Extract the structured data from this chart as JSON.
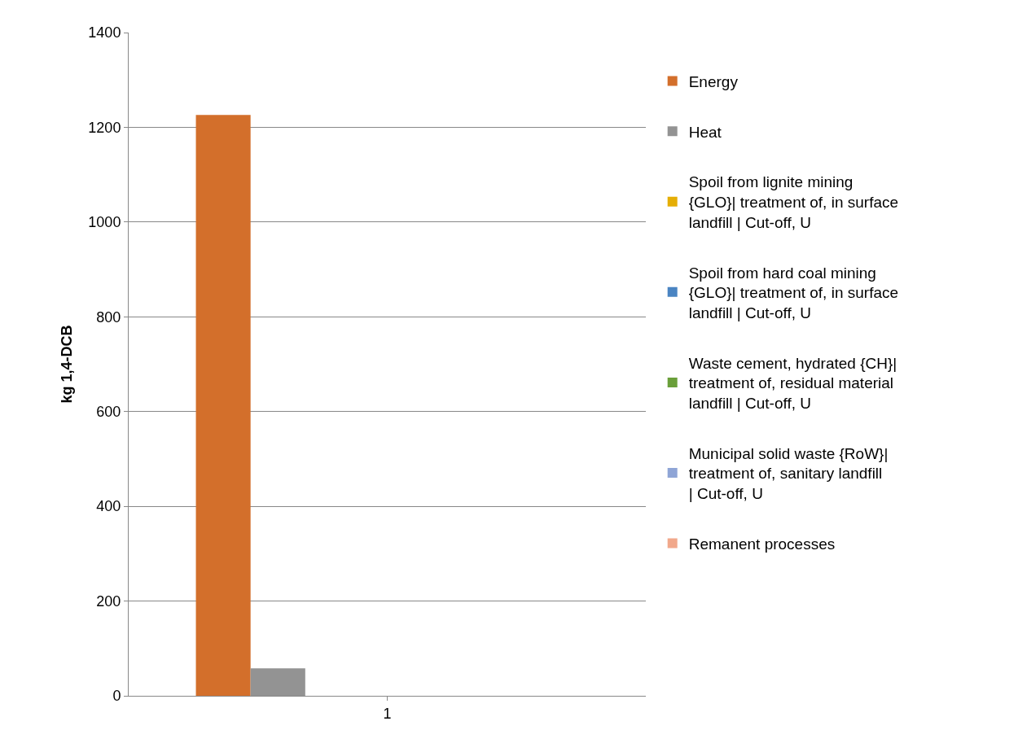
{
  "chart_data": {
    "type": "bar",
    "ylabel": "kg 1,4-DCB",
    "categories": [
      "1"
    ],
    "series": [
      {
        "name": "Energy",
        "color": "#d36f2b",
        "values": [
          1226
        ]
      },
      {
        "name": "Heat",
        "color": "#939393",
        "values": [
          58
        ]
      },
      {
        "name": "Spoil from lignite mining {GLO}| treatment of, in surface landfill | Cut-off, U",
        "color": "#e5ae06",
        "values": [
          0
        ]
      },
      {
        "name": "Spoil from hard coal mining {GLO}| treatment of, in surface landfill | Cut-off, U",
        "color": "#4a84c2",
        "values": [
          0
        ]
      },
      {
        "name": "Waste cement, hydrated {CH}| treatment of, residual material landfill | Cut-off, U",
        "color": "#6a9f3a",
        "values": [
          0
        ]
      },
      {
        "name": "Municipal solid waste {RoW}| treatment of, sanitary landfill | Cut-off, U",
        "color": "#8fa5d6",
        "values": [
          0
        ]
      },
      {
        "name": "Remanent processes",
        "color": "#f1a88b",
        "values": [
          0
        ]
      }
    ],
    "ylim": [
      0,
      1400
    ],
    "yticks": [
      0,
      200,
      400,
      600,
      800,
      1000,
      1200,
      1400
    ],
    "grid": "y",
    "legend": "right"
  }
}
